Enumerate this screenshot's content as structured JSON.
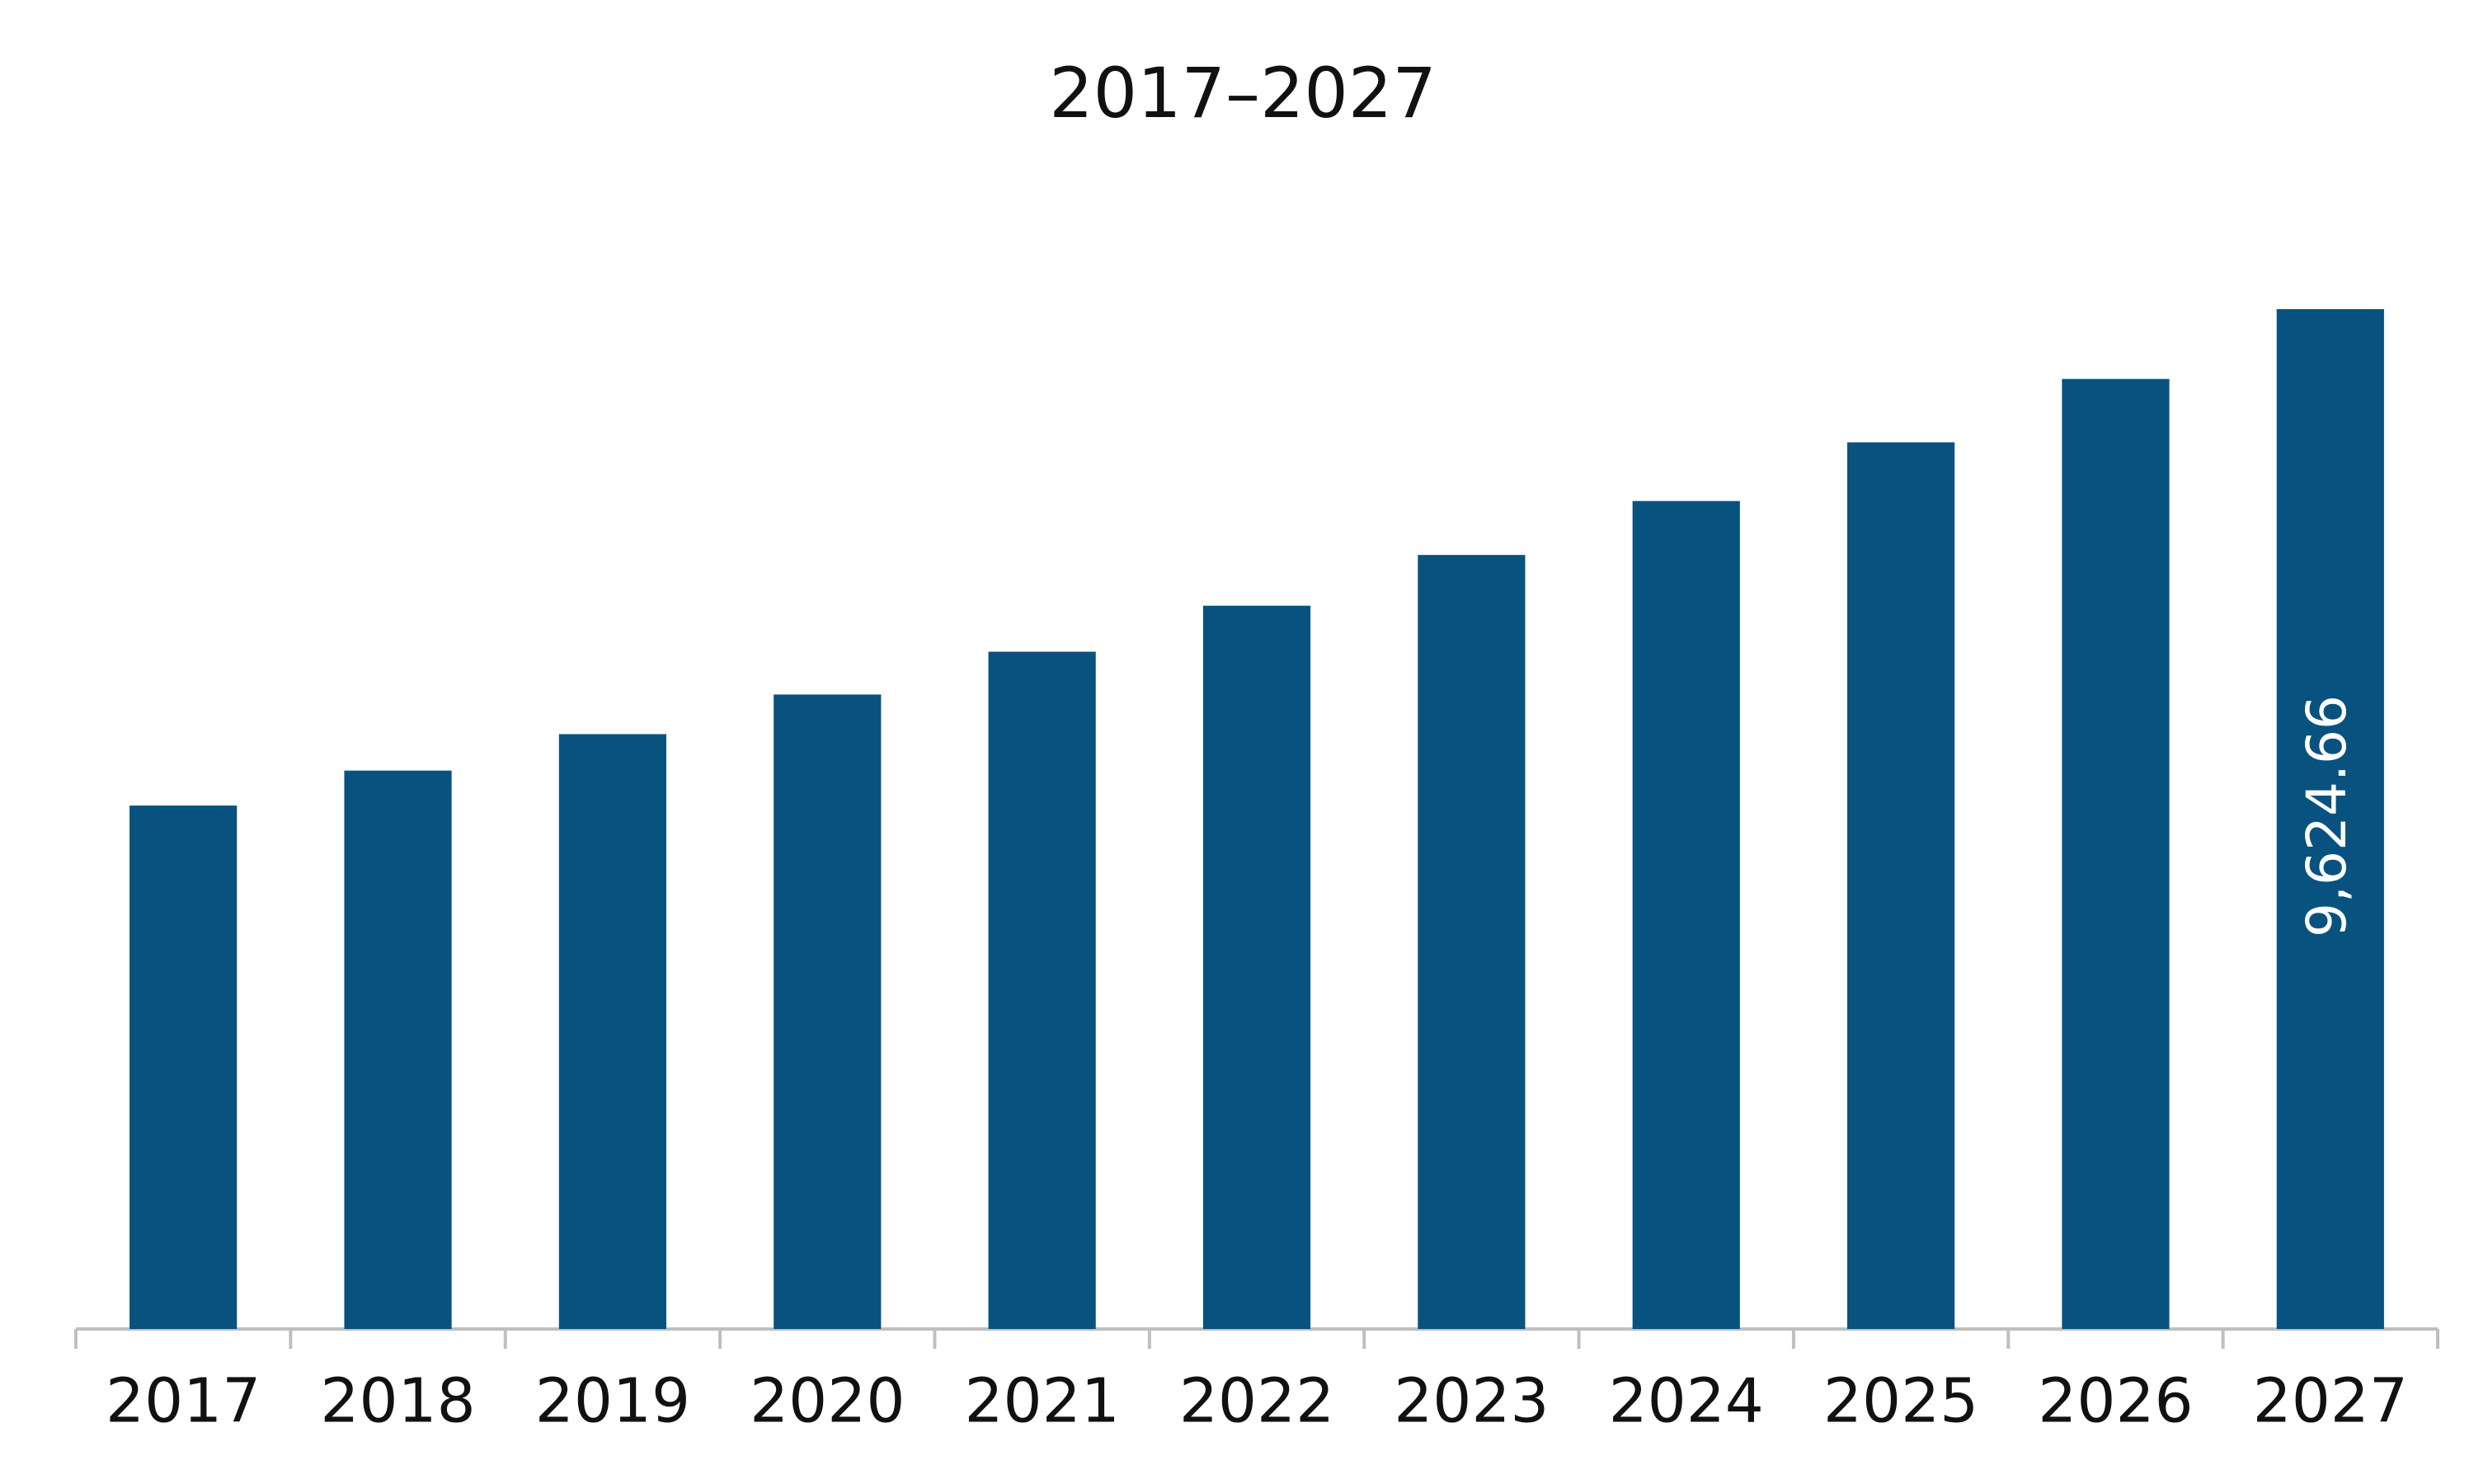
{
  "chart_data": {
    "type": "bar",
    "title": "2017–2027",
    "categories": [
      "2017",
      "2018",
      "2019",
      "2020",
      "2021",
      "2022",
      "2023",
      "2024",
      "2025",
      "2026",
      "2027"
    ],
    "values": [
      4940,
      5270,
      5614,
      5988,
      6392,
      6826,
      7305,
      7814,
      8368,
      8966,
      9624.66
    ],
    "value_labels": [
      null,
      null,
      null,
      null,
      null,
      null,
      null,
      null,
      null,
      null,
      "9,624.66"
    ],
    "color": "#08527f"
  }
}
